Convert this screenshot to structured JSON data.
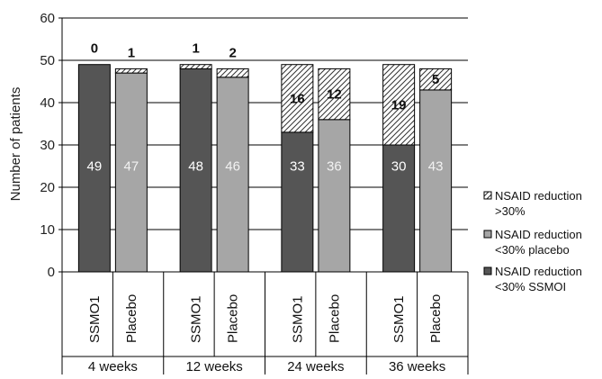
{
  "chart_data": {
    "type": "bar",
    "stacked": true,
    "ylabel": "Number of patients",
    "ylim": [
      0,
      60
    ],
    "yticks": [
      0,
      10,
      20,
      30,
      40,
      50,
      60
    ],
    "grid": true,
    "legend_position": "right",
    "groups": [
      "4 weeks",
      "12 weeks",
      "24 weeks",
      "36 weeks"
    ],
    "categories": [
      "SSMO1",
      "Placebo",
      "SSMO1",
      "Placebo",
      "SSMO1",
      "Placebo",
      "SSMO1",
      "Placebo"
    ],
    "series": [
      {
        "name": "NSAID reduction <30% SSMOI",
        "values": [
          49,
          null,
          48,
          null,
          33,
          null,
          30,
          null
        ],
        "color": "#555555",
        "pattern": "solid"
      },
      {
        "name": "NSAID reduction <30% placebo",
        "values": [
          null,
          47,
          null,
          46,
          null,
          36,
          null,
          43
        ],
        "color": "#a6a6a6",
        "pattern": "solid"
      },
      {
        "name": "NSAID reduction >30%",
        "values": [
          0,
          1,
          1,
          2,
          16,
          12,
          19,
          5
        ],
        "color": "#ffffff",
        "pattern": "diagonal-hatch"
      }
    ],
    "legend": [
      {
        "lines": [
          "NSAID reduction",
          ">30%"
        ],
        "series": 2
      },
      {
        "lines": [
          "NSAID reduction",
          "<30% placebo"
        ],
        "series": 1
      },
      {
        "lines": [
          "NSAID reduction",
          "<30% SSMOI"
        ],
        "series": 0
      }
    ]
  }
}
